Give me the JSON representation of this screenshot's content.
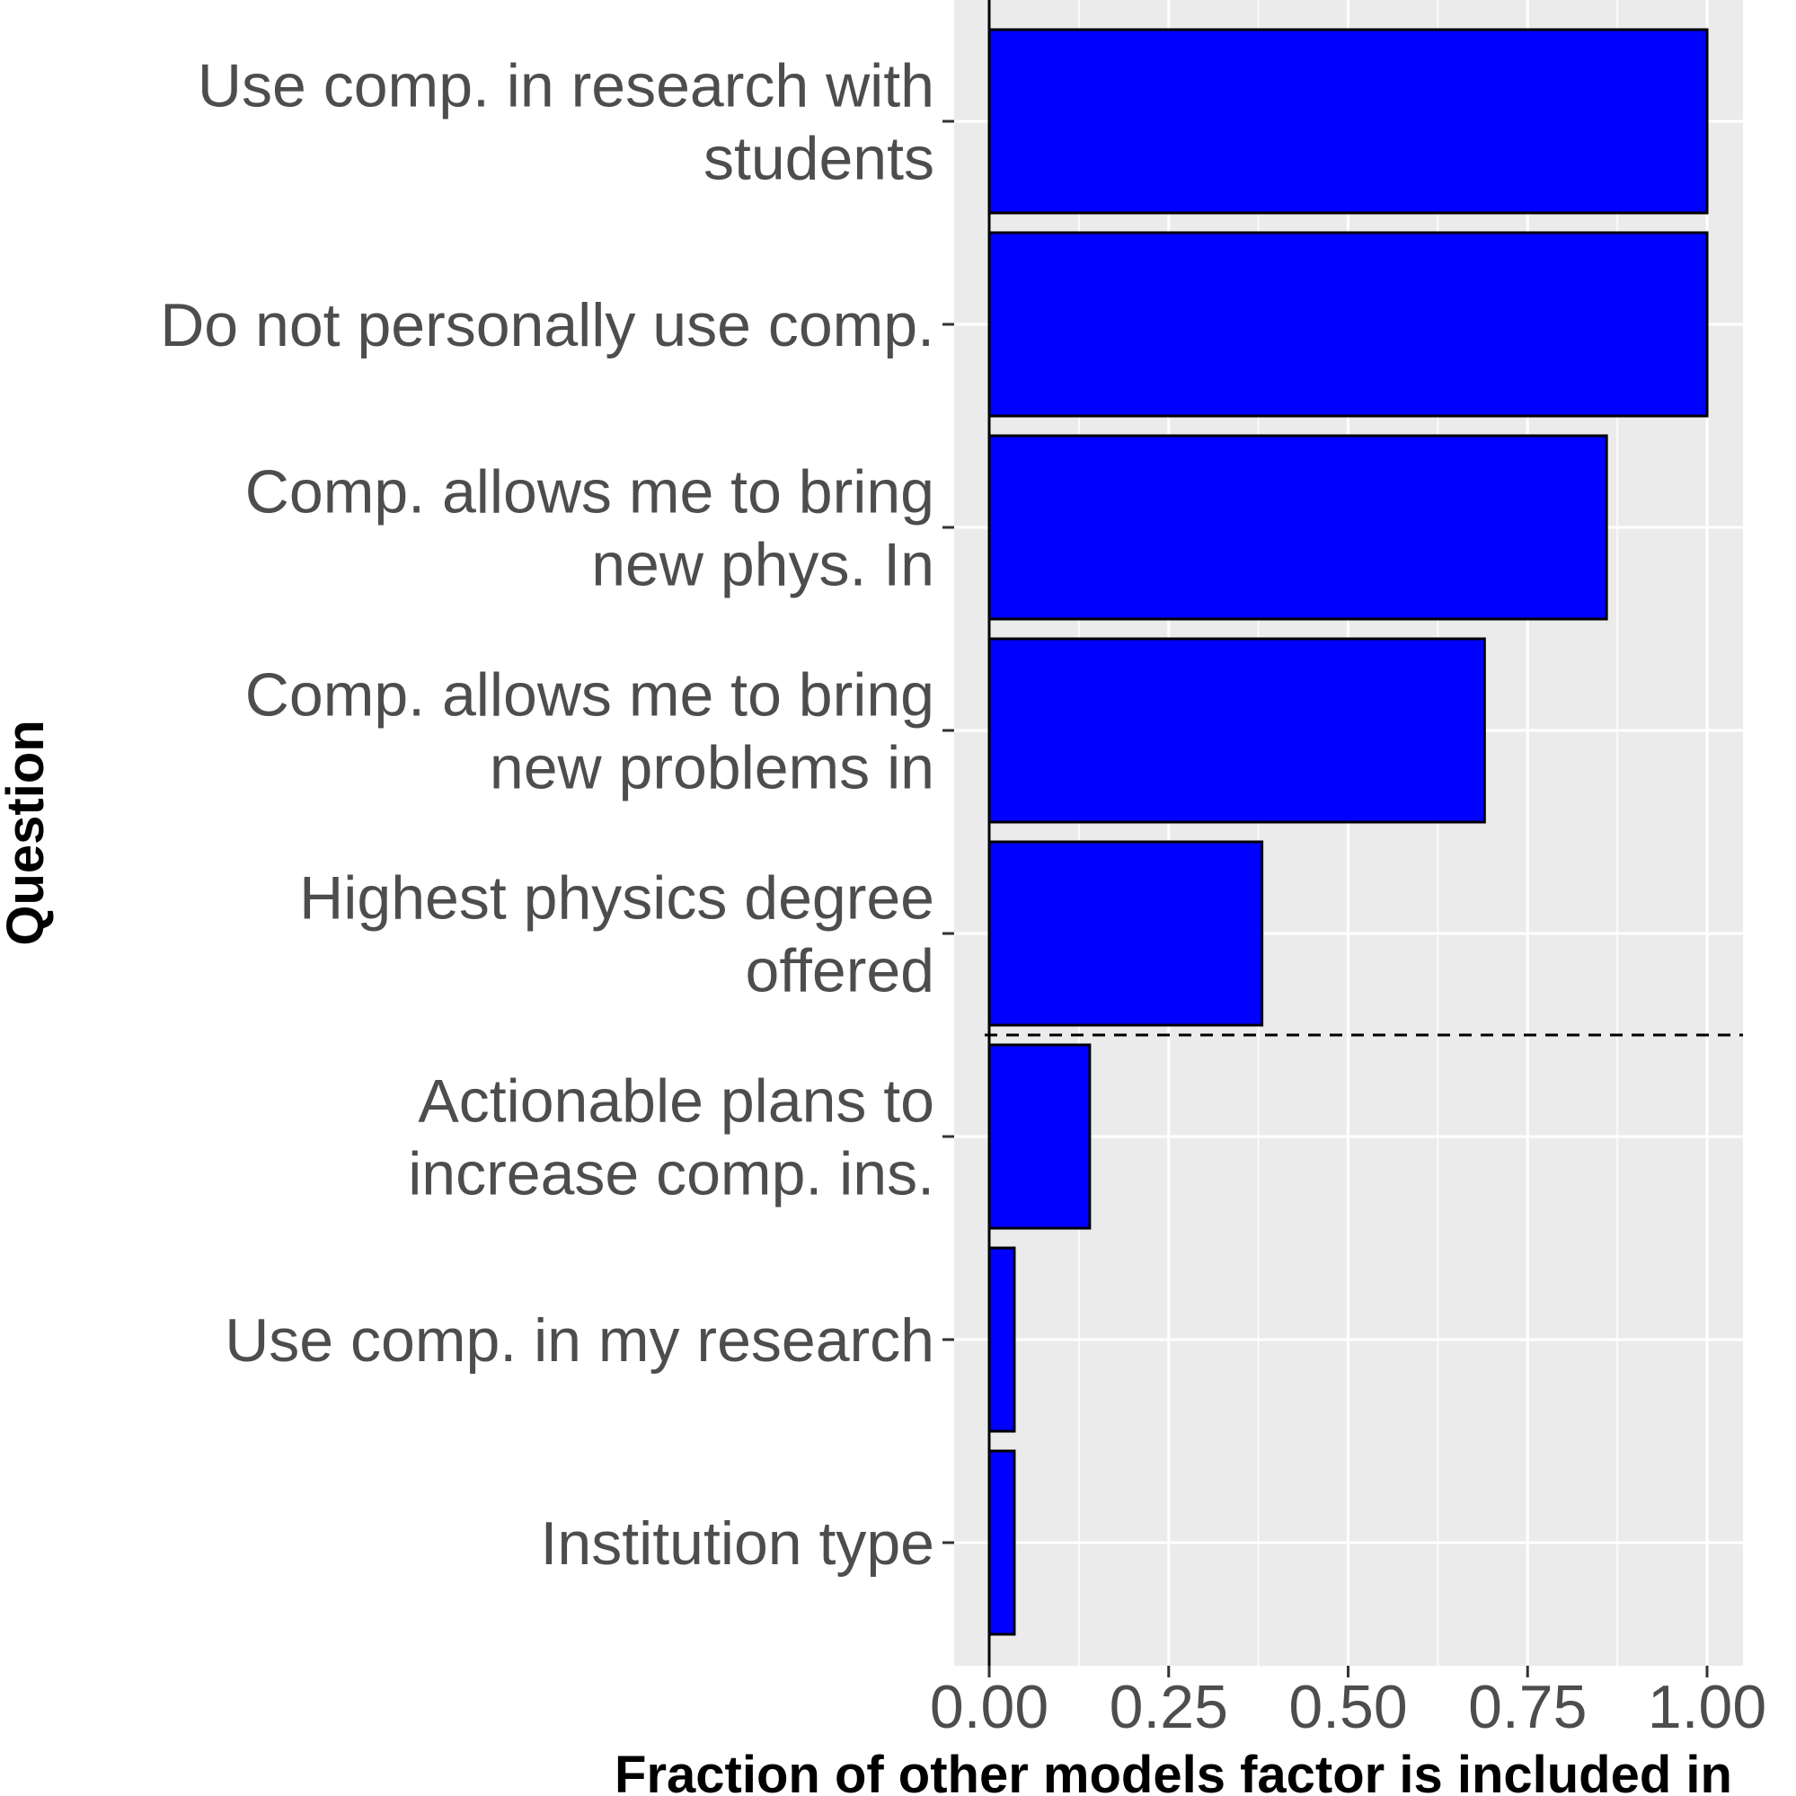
{
  "chart_data": {
    "type": "bar",
    "orientation": "horizontal",
    "xlabel": "Fraction of other models factor is included in",
    "ylabel": "Question",
    "xlim": [
      -0.05,
      1.05
    ],
    "xticks": [
      "0.00",
      "0.25",
      "0.50",
      "0.75",
      "1.00"
    ],
    "xtick_values": [
      0,
      0.25,
      0.5,
      0.75,
      1.0
    ],
    "grid": true,
    "legend": "none",
    "threshold_line": {
      "style": "dashed",
      "between": [
        "Highest physics degree offered",
        "Actionable plans to increase comp. ins."
      ]
    },
    "categories": [
      {
        "lines": [
          "Use comp. in research with",
          "students"
        ],
        "value": 1.0
      },
      {
        "lines": [
          "Do not personally use comp."
        ],
        "value": 1.0
      },
      {
        "lines": [
          "Comp. allows me to bring",
          "new phys. In"
        ],
        "value": 0.86
      },
      {
        "lines": [
          "Comp. allows me to bring",
          "new problems in"
        ],
        "value": 0.69
      },
      {
        "lines": [
          "Highest physics degree",
          "offered"
        ],
        "value": 0.38
      },
      {
        "lines": [
          "Actionable plans to",
          "increase comp. ins."
        ],
        "value": 0.14
      },
      {
        "lines": [
          "Use comp. in my research"
        ],
        "value": 0.035
      },
      {
        "lines": [
          "Institution type"
        ],
        "value": 0.035
      }
    ],
    "colors": {
      "bar_fill": "#0000ff",
      "bar_stroke": "#000000",
      "panel": "#ebebeb",
      "grid": "#ffffff",
      "tick_text": "#4d4d4d"
    }
  }
}
